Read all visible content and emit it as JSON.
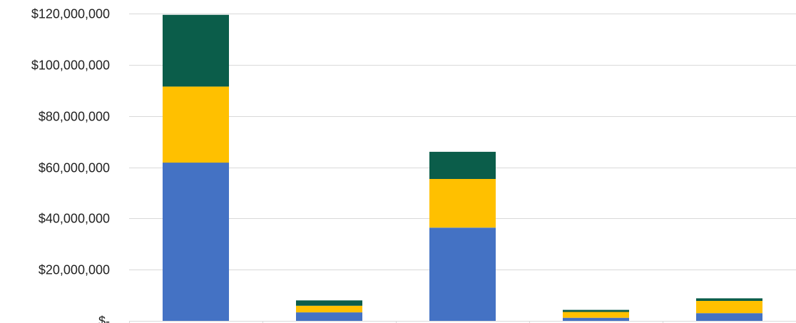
{
  "chart_data": {
    "type": "bar",
    "stacked": true,
    "title": "",
    "xlabel": "",
    "ylabel": "",
    "categories": [
      "",
      "",
      "",
      "",
      ""
    ],
    "ylim": [
      0,
      120000000
    ],
    "yticks": [
      0,
      20000000,
      40000000,
      60000000,
      80000000,
      100000000,
      120000000
    ],
    "ytick_labels": [
      "$-",
      "$20,000,000",
      "$40,000,000",
      "$60,000,000",
      "$80,000,000",
      "$100,000,000",
      "$120,000,000"
    ],
    "grid": true,
    "legend": "none",
    "series": [
      {
        "color": "#4472c4",
        "values": [
          61800000,
          3300000,
          36400000,
          1200000,
          3000000
        ]
      },
      {
        "color": "#ffc000",
        "values": [
          29700000,
          2600000,
          19000000,
          2300000,
          4800000
        ]
      },
      {
        "color": "#0b5d4a",
        "values": [
          28000000,
          2100000,
          10600000,
          800000,
          1000000
        ]
      }
    ]
  }
}
